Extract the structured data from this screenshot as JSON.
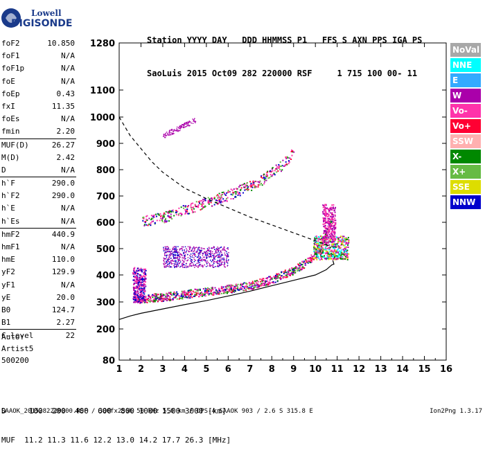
{
  "logo": {
    "line1": "Lowell",
    "line2": "DIGISONDE"
  },
  "header": {
    "line1": "Station YYYY DAY   DDD HHMMSS P1   FFS S AXN PPS IGA PS",
    "line2": "SaoLuis 2015 Oct09 282 220000 RSF     1 715 100 00- 11"
  },
  "params": [
    {
      "k": "foF2",
      "v": "10.850"
    },
    {
      "k": "foF1",
      "v": "N/A"
    },
    {
      "k": "foF1p",
      "v": "N/A"
    },
    {
      "k": "foE",
      "v": "N/A"
    },
    {
      "k": "foEp",
      "v": "0.43"
    },
    {
      "k": "fxI",
      "v": "11.35"
    },
    {
      "k": "foEs",
      "v": "N/A"
    },
    {
      "k": "fmin",
      "v": "2.20"
    },
    {
      "k": "MUF(D)",
      "v": "26.27",
      "sep": true
    },
    {
      "k": "M(D)",
      "v": "2.42"
    },
    {
      "k": "D",
      "v": "N/A"
    },
    {
      "k": "h`F",
      "v": "290.0",
      "sep": true
    },
    {
      "k": "h`F2",
      "v": "290.0"
    },
    {
      "k": "h`E",
      "v": "N/A"
    },
    {
      "k": "h`Es",
      "v": "N/A"
    },
    {
      "k": "hmF2",
      "v": "440.9",
      "sep": true
    },
    {
      "k": "hmF1",
      "v": "N/A"
    },
    {
      "k": "hmE",
      "v": "110.0"
    },
    {
      "k": "yF2",
      "v": "129.9"
    },
    {
      "k": "yF1",
      "v": "N/A"
    },
    {
      "k": "yE",
      "v": "20.0"
    },
    {
      "k": "B0",
      "v": "124.7"
    },
    {
      "k": "B1",
      "v": "2.27"
    },
    {
      "k": "C-level",
      "v": "22",
      "sep": true
    }
  ],
  "auto": {
    "line1": "Auto:",
    "line2": "Artist5",
    "line3": "500200"
  },
  "legend": [
    {
      "label": "NoVal",
      "bg": "#a8a8a8",
      "fg": "#ffffff"
    },
    {
      "label": "NNE",
      "bg": "#00ffff",
      "fg": "#ffffff"
    },
    {
      "label": "E",
      "bg": "#33aaff",
      "fg": "#ffffff"
    },
    {
      "label": "W",
      "bg": "#aa00aa",
      "fg": "#ffffff"
    },
    {
      "label": "Vo-",
      "bg": "#ff33aa",
      "fg": "#ffffff"
    },
    {
      "label": "Vo+",
      "bg": "#ff0033",
      "fg": "#ffffff"
    },
    {
      "label": "SSW",
      "bg": "#ffb0b0",
      "fg": "#ffffff"
    },
    {
      "label": "X-",
      "bg": "#008800",
      "fg": "#ffffff"
    },
    {
      "label": "X+",
      "bg": "#66bb44",
      "fg": "#ffffff"
    },
    {
      "label": "SSE",
      "bg": "#dddd00",
      "fg": "#ffffff"
    },
    {
      "label": "NNW",
      "bg": "#0000cc",
      "fg": "#ffffff"
    }
  ],
  "muf_table": {
    "d_row": "D     100  200  400  600  800 1000 1500 3000 [km]",
    "muf_row": "MUF  11.2 11.3 11.6 12.2 13.0 14.2 17.7 26.3 [MHz]"
  },
  "footer": {
    "left": "SAAOK_2015282220000.RSF / 300fx256h 50 kHz 5.0 km / DPS-4 SAAOK 903 / 2.6 S 315.8 E",
    "right": "Ion2Png 1.3.17"
  },
  "chart_data": {
    "type": "scatter",
    "title": "",
    "xlabel": "",
    "ylabel": "",
    "xlim": [
      1,
      16
    ],
    "ylim": [
      80,
      1280
    ],
    "x_ticks": [
      1,
      2,
      3,
      4,
      5,
      6,
      7,
      8,
      9,
      10,
      11,
      12,
      13,
      14,
      15,
      16
    ],
    "y_ticks": [
      80,
      200,
      300,
      400,
      500,
      600,
      700,
      800,
      900,
      1000,
      1100,
      1280
    ],
    "y_scale": "range-reciprocal-like",
    "series": [
      {
        "name": "",
        "style": "solid",
        "x": [
          1.0,
          1.5,
          2.0,
          2.5,
          3.0,
          4.0,
          5.0,
          6.0,
          7.0,
          8.0,
          9.0,
          10.0,
          10.5,
          10.75,
          10.85,
          10.8
        ],
        "y": [
          235,
          248,
          258,
          266,
          274,
          290,
          305,
          322,
          340,
          360,
          380,
          400,
          420,
          438,
          441,
          455
        ]
      },
      {
        "name": "",
        "style": "dashed",
        "x": [
          1.0,
          1.5,
          2.0,
          2.5,
          3.0,
          4.0,
          5.0,
          6.0,
          7.0,
          8.0,
          9.0,
          10.0,
          10.5,
          10.85
        ],
        "y": [
          1000,
          930,
          880,
          830,
          790,
          730,
          690,
          655,
          620,
          590,
          560,
          530,
          515,
          505
        ]
      },
      {
        "name": "trace",
        "x": [
          1.8,
          2.2,
          3.0,
          4.0,
          5.0,
          6.0,
          7.0,
          8.0,
          9.0,
          9.5,
          10.0,
          10.3,
          10.5,
          10.7,
          10.85
        ],
        "y": [
          310,
          315,
          320,
          330,
          340,
          350,
          362,
          385,
          420,
          445,
          480,
          520,
          560,
          610,
          660
        ]
      },
      {
        "name": "multihop",
        "x": [
          2.0,
          3.0,
          4.0,
          5.0,
          6.0,
          7.0,
          7.5,
          8.0,
          8.5,
          9.0
        ],
        "y": [
          605,
          620,
          650,
          675,
          705,
          740,
          760,
          790,
          820,
          870
        ]
      }
    ],
    "grid": false,
    "legend_position": "right"
  }
}
